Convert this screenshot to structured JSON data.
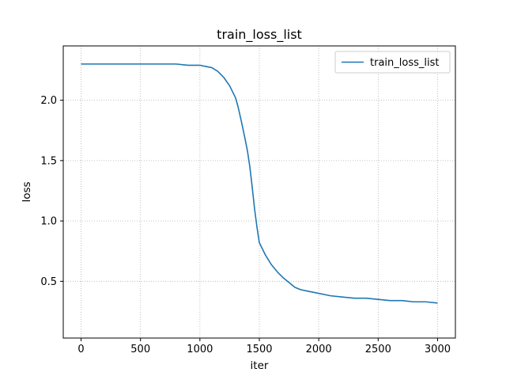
{
  "chart_data": {
    "type": "line",
    "title": "train_loss_list",
    "xlabel": "iter",
    "ylabel": "loss",
    "xlim": [
      -150,
      3150
    ],
    "ylim": [
      0.03,
      2.45
    ],
    "xticks": [
      0,
      500,
      1000,
      1500,
      2000,
      2500,
      3000
    ],
    "xtick_labels": [
      "0",
      "500",
      "1000",
      "1500",
      "2000",
      "2500",
      "3000"
    ],
    "yticks": [
      0.5,
      1.0,
      1.5,
      2.0
    ],
    "ytick_labels": [
      "0.5",
      "1.0",
      "1.5",
      "2.0"
    ],
    "grid": true,
    "grid_style": "dotted",
    "legend_position": "top-right",
    "colors": {
      "line": "#1f77b4",
      "grid": "#b0b0b0",
      "axes": "#000000"
    },
    "series": [
      {
        "name": "train_loss_list",
        "x": [
          0,
          100,
          200,
          300,
          400,
          500,
          600,
          700,
          800,
          900,
          1000,
          1050,
          1100,
          1150,
          1200,
          1250,
          1300,
          1320,
          1350,
          1380,
          1400,
          1420,
          1440,
          1460,
          1480,
          1500,
          1550,
          1600,
          1650,
          1700,
          1750,
          1800,
          1850,
          1900,
          2000,
          2100,
          2200,
          2300,
          2400,
          2500,
          2600,
          2700,
          2800,
          2900,
          3000
        ],
        "y": [
          2.3,
          2.3,
          2.3,
          2.3,
          2.3,
          2.3,
          2.3,
          2.3,
          2.3,
          2.29,
          2.29,
          2.28,
          2.27,
          2.24,
          2.19,
          2.12,
          2.02,
          1.95,
          1.82,
          1.68,
          1.58,
          1.45,
          1.28,
          1.1,
          0.95,
          0.82,
          0.72,
          0.64,
          0.58,
          0.53,
          0.49,
          0.45,
          0.43,
          0.42,
          0.4,
          0.38,
          0.37,
          0.36,
          0.36,
          0.35,
          0.34,
          0.34,
          0.33,
          0.33,
          0.32
        ]
      }
    ]
  }
}
